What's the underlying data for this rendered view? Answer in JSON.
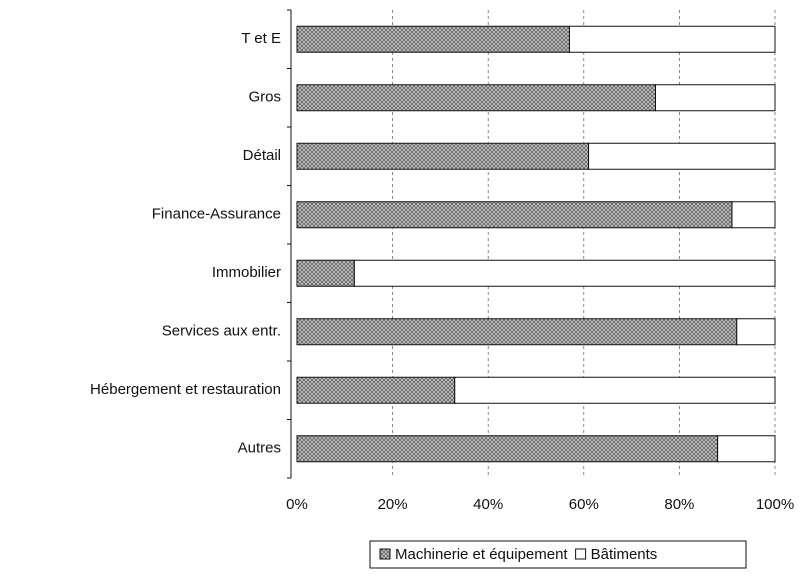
{
  "chart_data": {
    "type": "stacked_barh",
    "categories": [
      "T et E",
      "Gros",
      "Détail",
      "Finance-Assurance",
      "Immobilier",
      "Services aux entr.",
      "Hébergement et restauration",
      "Autres"
    ],
    "series": [
      {
        "name": "Machinerie et équipement",
        "color": "#6b6b6b",
        "values": [
          57,
          75,
          61,
          91,
          12,
          92,
          33,
          88
        ]
      },
      {
        "name": "Bâtiments",
        "color": "#ffffff",
        "values": [
          43,
          25,
          39,
          9,
          88,
          8,
          67,
          12
        ]
      }
    ],
    "xlim": [
      0,
      100
    ],
    "xticks": [
      {
        "value": 0,
        "label": "0%"
      },
      {
        "value": 20,
        "label": "20%"
      },
      {
        "value": 40,
        "label": "40%"
      },
      {
        "value": 60,
        "label": "60%"
      },
      {
        "value": 80,
        "label": "80%"
      },
      {
        "value": 100,
        "label": "100%"
      }
    ],
    "grid": true,
    "legend": "bottom"
  }
}
